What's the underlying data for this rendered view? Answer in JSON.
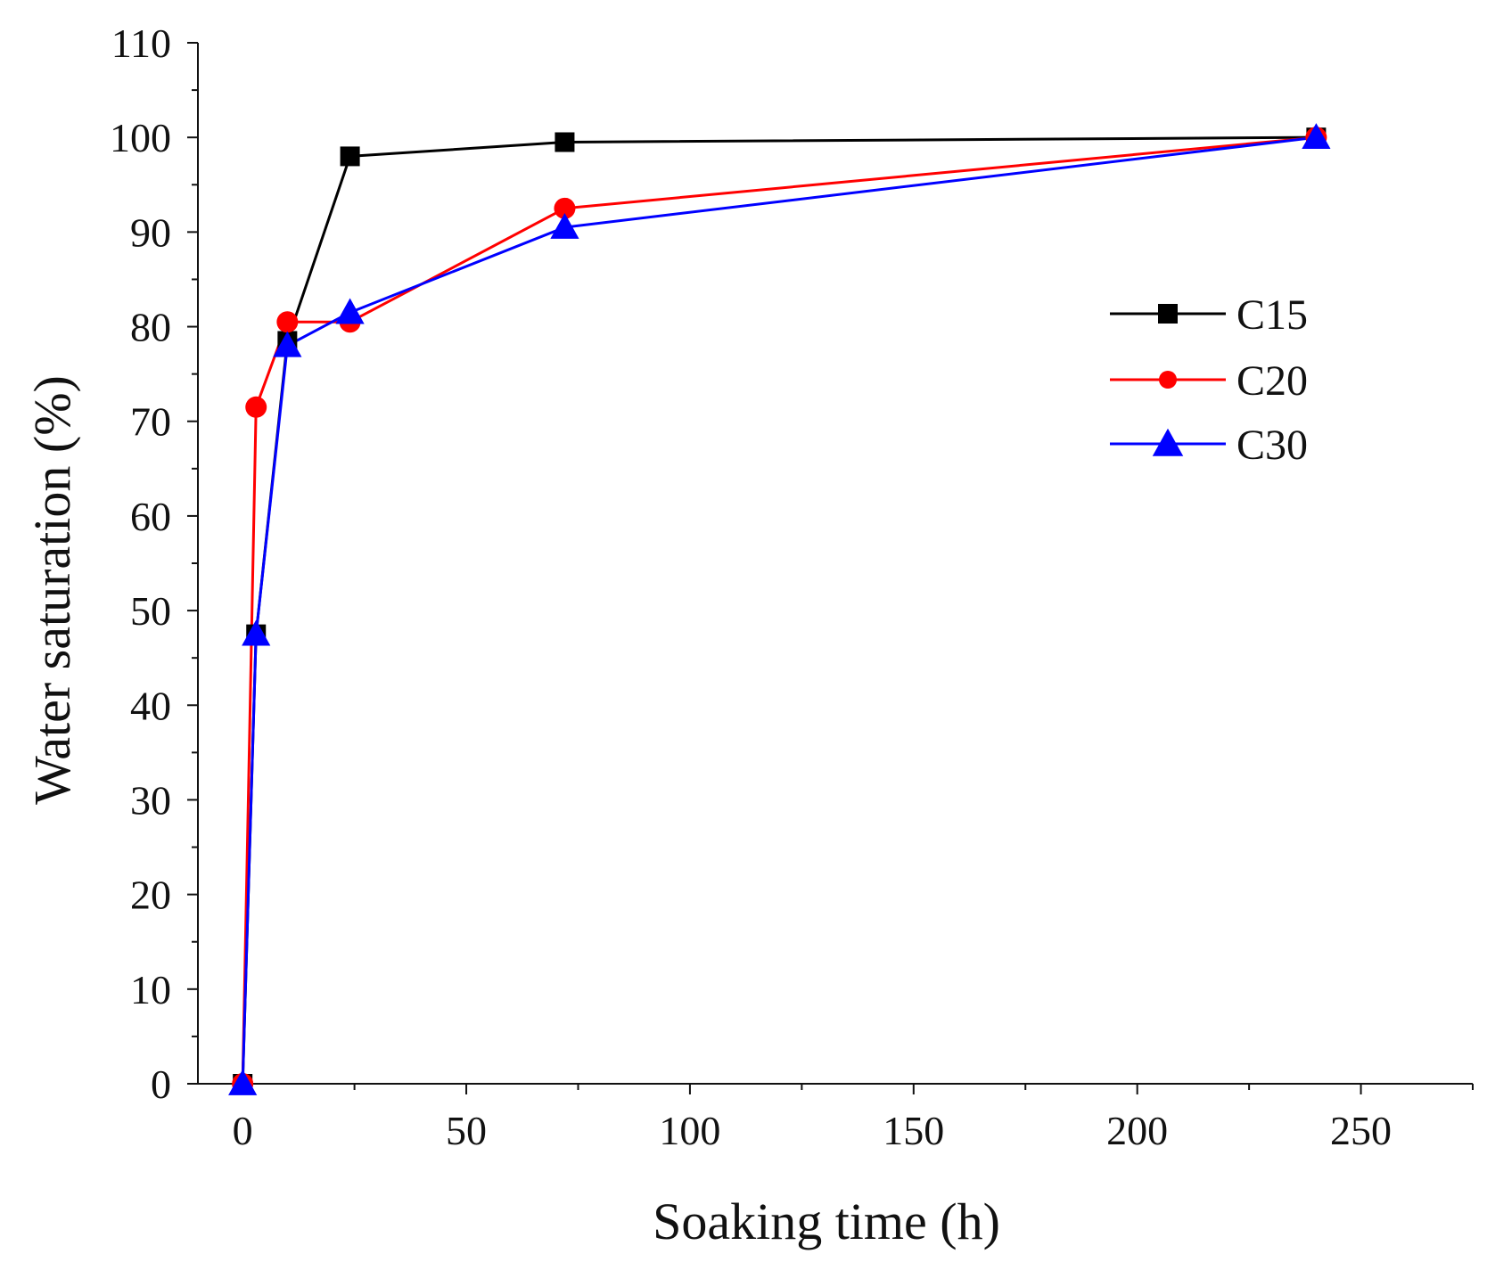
{
  "chart_data": {
    "type": "line",
    "title": "",
    "xlabel": "Soaking time (h)",
    "ylabel": "Water saturation (%)",
    "xlim": [
      -10,
      275
    ],
    "ylim": [
      0,
      110
    ],
    "xticks": [
      0,
      50,
      100,
      150,
      200,
      250
    ],
    "yticks": [
      0,
      10,
      20,
      30,
      40,
      50,
      60,
      70,
      80,
      90,
      100,
      110
    ],
    "xtick_labels": [
      "0",
      "50",
      "100",
      "150",
      "200",
      "250"
    ],
    "ytick_labels": [
      "0",
      "10",
      "20",
      "30",
      "40",
      "50",
      "60",
      "70",
      "80",
      "90",
      "100",
      "110"
    ],
    "grid": false,
    "legend_position": "right",
    "series": [
      {
        "name": "C15",
        "color": "#000000",
        "marker": "square",
        "x": [
          0,
          3,
          10,
          24,
          72,
          240
        ],
        "y": [
          0,
          47.5,
          78.5,
          98,
          99.5,
          100
        ]
      },
      {
        "name": "C20",
        "color": "#ff0000",
        "marker": "circle",
        "x": [
          0,
          3,
          10,
          24,
          72,
          240
        ],
        "y": [
          0,
          71.5,
          80.5,
          80.5,
          92.5,
          100
        ]
      },
      {
        "name": "C30",
        "color": "#0000ff",
        "marker": "triangle",
        "x": [
          0,
          3,
          10,
          24,
          72,
          240
        ],
        "y": [
          0,
          47.5,
          78,
          81.5,
          90.5,
          100
        ]
      }
    ]
  }
}
